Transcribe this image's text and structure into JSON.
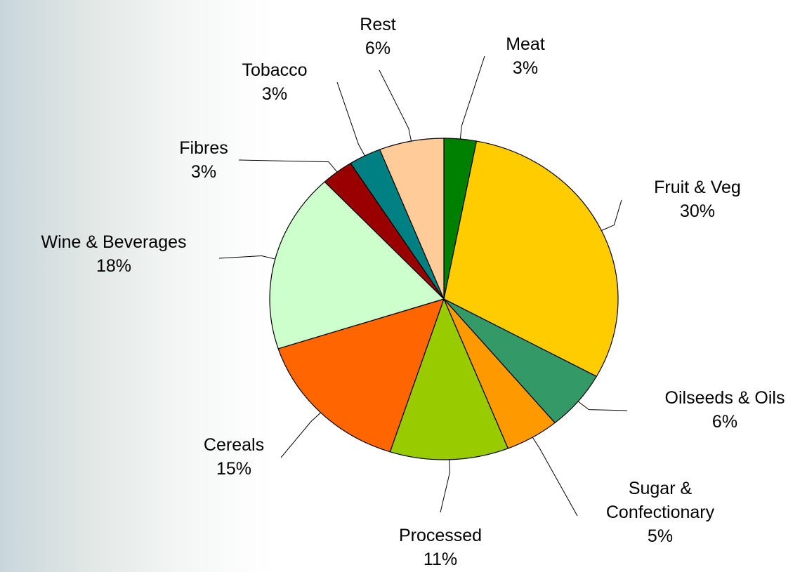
{
  "chart_data": {
    "type": "pie",
    "categories": [
      "Meat",
      "Fruit & Veg",
      "Oilseeds & Oils",
      "Sugar & Confectionary",
      "Processed",
      "Cereals",
      "Wine & Beverages",
      "Fibres",
      "Tobacco",
      "Rest"
    ],
    "values": [
      3,
      30,
      6,
      5,
      11,
      15,
      18,
      3,
      3,
      6
    ],
    "value_labels": [
      "3%",
      "30%",
      "6%",
      "5%",
      "11%",
      "15%",
      "18%",
      "3%",
      "3%",
      "6%"
    ],
    "colors": [
      "#008000",
      "#ffcc00",
      "#339966",
      "#ff9900",
      "#99cc00",
      "#ff6600",
      "#ccffcc",
      "#990000",
      "#008080",
      "#ffcc99"
    ]
  }
}
